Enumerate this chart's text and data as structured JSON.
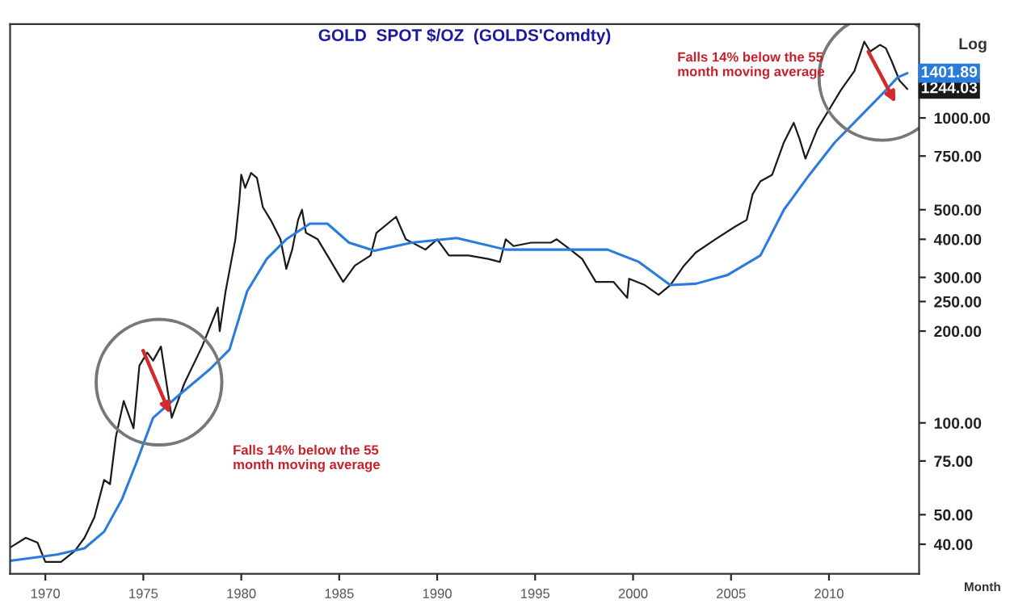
{
  "chart_data": {
    "type": "line",
    "title": "GOLD  SPOT $/OZ  (GOLDS'Comdty)",
    "log": "y",
    "grid": false,
    "marker": "none",
    "line_style": "solid",
    "xlim": [
      1968.2,
      2014.6
    ],
    "xticks": [
      1970,
      1975,
      1980,
      1985,
      1990,
      1995,
      2000,
      2005,
      2010
    ],
    "ylim": [
      32,
      2030
    ],
    "yticks": [
      {
        "value": 40,
        "label": "40.00"
      },
      {
        "value": 50,
        "label": "50.00"
      },
      {
        "value": 75,
        "label": "75.00"
      },
      {
        "value": 100,
        "label": "100.00"
      },
      {
        "value": 200,
        "label": "200.00"
      },
      {
        "value": 250,
        "label": "250.00"
      },
      {
        "value": 300,
        "label": "300.00"
      },
      {
        "value": 400,
        "label": "400.00"
      },
      {
        "value": 500,
        "label": "500.00"
      },
      {
        "value": 750,
        "label": "750.00"
      },
      {
        "value": 1000,
        "label": "1000.00"
      }
    ],
    "series": [
      {
        "color": "#1a1a1a",
        "x": [
          1968.2,
          1969.0,
          1969.6,
          1970.0,
          1970.8,
          1971.5,
          1972.0,
          1972.5,
          1973.0,
          1973.3,
          1973.6,
          1974.0,
          1974.5,
          1974.8,
          1975.2,
          1975.5,
          1975.9,
          1976.45,
          1977.1,
          1978.0,
          1978.8,
          1978.9,
          1979.2,
          1979.7,
          1979.9,
          1980.0,
          1980.2,
          1980.5,
          1980.8,
          1981.1,
          1981.5,
          1982.0,
          1982.3,
          1982.6,
          1982.9,
          1983.1,
          1983.3,
          1983.9,
          1984.5,
          1985.2,
          1985.8,
          1986.6,
          1986.9,
          1987.9,
          1988.4,
          1989.4,
          1990.0,
          1990.6,
          1991.6,
          1992.6,
          1993.2,
          1993.5,
          1993.9,
          1994.8,
          1995.8,
          1996.1,
          1996.8,
          1997.4,
          1998.1,
          1999.0,
          1999.7,
          1999.8,
          2000.6,
          2001.3,
          2001.9,
          2002.6,
          2003.2,
          2004.2,
          2005.2,
          2005.8,
          2006.1,
          2006.5,
          2007.1,
          2007.7,
          2008.2,
          2008.5,
          2008.8,
          2009.4,
          2010.0,
          2010.6,
          2011.3,
          2011.8,
          2012.1,
          2012.6,
          2012.9,
          2013.2,
          2013.6,
          2014.0
        ],
        "values": [
          39,
          42,
          40.5,
          35,
          35,
          38,
          42,
          49,
          65,
          63,
          90,
          118,
          96,
          154,
          170,
          160,
          178,
          104,
          135,
          178,
          239,
          200,
          270,
          400,
          535,
          651,
          590,
          660,
          636,
          510,
          463,
          400,
          320,
          370,
          463,
          500,
          420,
          400,
          345,
          290,
          328,
          354,
          420,
          474,
          400,
          370,
          400,
          354,
          354,
          345,
          337,
          400,
          380,
          390,
          390,
          400,
          370,
          345,
          290,
          290,
          257,
          297,
          283,
          263,
          283,
          328,
          362,
          400,
          440,
          463,
          562,
          620,
          651,
          832,
          964,
          853,
          736,
          918,
          1063,
          1232,
          1426,
          1778,
          1652,
          1736,
          1694,
          1535,
          1326,
          1244.03
        ],
        "value_labels": [
          null,
          null,
          null,
          null,
          null,
          null,
          null,
          null,
          null,
          null,
          null,
          null,
          null,
          null,
          null,
          null,
          null,
          null,
          null,
          null,
          null,
          null,
          null,
          null,
          null,
          null,
          null,
          null,
          null,
          null,
          null,
          null,
          null,
          null,
          null,
          null,
          null,
          null,
          null,
          null,
          null,
          null,
          null,
          null,
          null,
          null,
          null,
          null,
          null,
          null,
          null,
          null,
          null,
          null,
          null,
          null,
          null,
          null,
          null,
          null,
          null,
          null,
          null,
          null,
          null,
          null,
          null,
          null,
          null,
          null,
          null,
          null,
          null,
          null,
          null,
          null,
          null,
          null,
          null,
          null,
          null,
          null,
          null,
          null,
          null,
          null,
          null,
          "1244.03"
        ]
      },
      {
        "color": "#2a7bde",
        "x": [
          1968.2,
          1970.6,
          1972.0,
          1973.0,
          1973.9,
          1974.7,
          1975.5,
          1976.8,
          1978.4,
          1979.4,
          1980.3,
          1981.3,
          1982.3,
          1983.5,
          1984.4,
          1985.5,
          1986.8,
          1988.7,
          1991.0,
          1993.5,
          1996.8,
          1998.7,
          2000.3,
          2001.9,
          2003.2,
          2004.8,
          2006.5,
          2007.7,
          2009.0,
          2010.3,
          2011.6,
          2012.9,
          2013.5,
          2014.0
        ],
        "values": [
          35.3,
          37,
          38.8,
          44,
          56,
          75.5,
          104,
          123,
          150,
          174,
          270,
          345,
          400,
          450,
          450,
          390,
          367,
          390,
          404,
          370,
          370,
          370,
          337,
          283,
          286,
          305,
          354,
          500,
          651,
          832,
          1012,
          1232,
          1358,
          1401.89
        ],
        "value_labels": [
          null,
          null,
          null,
          null,
          null,
          null,
          null,
          null,
          null,
          null,
          null,
          null,
          null,
          null,
          null,
          null,
          null,
          null,
          null,
          null,
          null,
          null,
          null,
          null,
          null,
          null,
          null,
          null,
          null,
          null,
          null,
          null,
          null,
          "1401.89"
        ]
      }
    ],
    "annotations": [
      "Log",
      "Month",
      "Falls 14% below the 55\nmonth moving average",
      "Falls 14% below the 55\nmonth moving average"
    ]
  }
}
